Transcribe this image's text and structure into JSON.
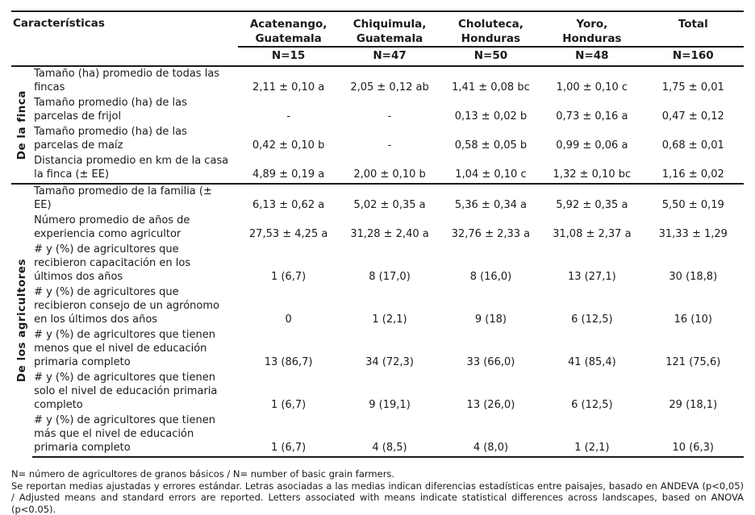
{
  "table": {
    "characteristics_header": "Características",
    "columns": [
      {
        "line1": "Acatenango,",
        "line2": "Guatemala",
        "n": "N=15"
      },
      {
        "line1": "Chiquimula,",
        "line2": "Guatemala",
        "n": "N=47"
      },
      {
        "line1": "Choluteca,",
        "line2": "Honduras",
        "n": "N=50"
      },
      {
        "line1": "Yoro,",
        "line2": "Honduras",
        "n": "N=48"
      },
      {
        "line1": "Total",
        "line2": "",
        "n": "N=160"
      }
    ],
    "groups": [
      {
        "label": "De la finca",
        "rows": [
          {
            "label": "Tamaño (ha) promedio de todas las fincas",
            "values": [
              "2,11 ± 0,10 a",
              "2,05 ± 0,12 ab",
              "1,41 ± 0,08 bc",
              "1,00 ± 0,10 c",
              "1,75 ± 0,01"
            ]
          },
          {
            "label": "Tamaño promedio (ha) de las parcelas de frijol",
            "values": [
              "-",
              "-",
              "0,13 ± 0,02 b",
              "0,73 ± 0,16 a",
              "0,47 ± 0,12"
            ]
          },
          {
            "label": "Tamaño promedio (ha) de las parcelas de maíz",
            "values": [
              "0,42 ± 0,10 b",
              "-",
              "0,58 ± 0,05 b",
              "0,99 ± 0,06 a",
              "0,68 ± 0,01"
            ]
          },
          {
            "label": "Distancia promedio en km de la casa la finca (± EE)",
            "values": [
              "4,89 ± 0,19 a",
              "2,00 ± 0,10 b",
              "1,04 ± 0,10 c",
              "1,32 ± 0,10 bc",
              "1,16 ± 0,02"
            ]
          }
        ]
      },
      {
        "label": "De los agricultores",
        "rows": [
          {
            "label": "Tamaño promedio de la familia (± EE)",
            "values": [
              "6,13 ± 0,62 a",
              "5,02 ± 0,35 a",
              "5,36 ± 0,34 a",
              "5,92 ± 0,35 a",
              "5,50 ± 0,19"
            ]
          },
          {
            "label": "Número promedio de años de experiencia como agricultor",
            "values": [
              "27,53 ± 4,25 a",
              "31,28 ± 2,40 a",
              "32,76 ± 2,33 a",
              "31,08 ± 2,37 a",
              "31,33 ± 1,29"
            ]
          },
          {
            "label": "# y (%) de agricultores que recibieron capacitación en los últimos dos años",
            "values": [
              "1 (6,7)",
              "8 (17,0)",
              "8 (16,0)",
              "13 (27,1)",
              "30 (18,8)"
            ]
          },
          {
            "label": "# y (%) de agricultores que recibieron consejo de un agrónomo en los últimos dos años",
            "values": [
              "0",
              "1 (2,1)",
              "9 (18)",
              "6 (12,5)",
              "16 (10)"
            ]
          },
          {
            "label": "# y (%) de agricultores que tienen menos que el nivel de educación primaria completo",
            "values": [
              "13 (86,7)",
              "34 (72,3)",
              "33 (66,0)",
              "41 (85,4)",
              "121 (75,6)"
            ]
          },
          {
            "label": "# y (%) de agricultores que tienen solo el nivel de educación primaria completo",
            "values": [
              "1 (6,7)",
              "9 (19,1)",
              "13 (26,0)",
              "6 (12,5)",
              "29 (18,1)"
            ]
          },
          {
            "label": "# y (%) de agricultores que tienen más que el nivel de educación primaria completo",
            "values": [
              "1 (6,7)",
              "4 (8,5)",
              "4 (8,0)",
              "1 (2,1)",
              "10 (6,3)"
            ]
          }
        ]
      }
    ]
  },
  "footnotes": {
    "line1": "N= número de agricultores de granos básicos / N= number of basic grain farmers.",
    "line2": "Se reportan medias ajustadas y errores estándar. Letras asociadas a las medias indican diferencias estadísticas entre paisajes, basado en ANDEVA (p<0,05) / Adjusted means and standard errors are reported. Letters associated with means indicate statistical differences across landscapes, based on ANOVA (p<0.05)."
  },
  "colors": {
    "text": "#1a1a1a",
    "rule": "#1a1a1a",
    "background": "#ffffff"
  }
}
